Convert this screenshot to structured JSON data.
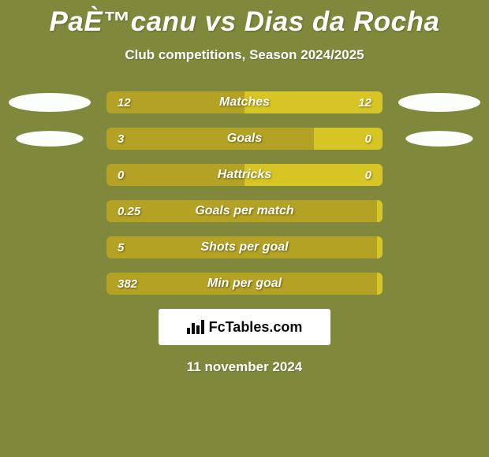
{
  "colors": {
    "background": "#80893b",
    "player1": "#b3a223",
    "player2": "#d6c525",
    "avatar": "#fcfefb",
    "text": "#ffffff",
    "brand_bg": "#ffffff",
    "brand_text": "#0a0a0a"
  },
  "title": "PaÈ™canu vs Dias da Rocha",
  "subtitle": "Club competitions, Season 2024/2025",
  "date": "11 november 2024",
  "brand": "FcTables.com",
  "stats": [
    {
      "label": "Matches",
      "left_val": "12",
      "right_val": "12",
      "left_pct": 50,
      "show_avatars": true,
      "avatar_scale_left": 1.0,
      "avatar_scale_right": 1.0
    },
    {
      "label": "Goals",
      "left_val": "3",
      "right_val": "0",
      "left_pct": 75,
      "show_avatars": true,
      "avatar_scale_left": 0.82,
      "avatar_scale_right": 0.82
    },
    {
      "label": "Hattricks",
      "left_val": "0",
      "right_val": "0",
      "left_pct": 50,
      "show_avatars": false
    },
    {
      "label": "Goals per match",
      "left_val": "0.25",
      "right_val": "",
      "left_pct": 98,
      "show_avatars": false
    },
    {
      "label": "Shots per goal",
      "left_val": "5",
      "right_val": "",
      "left_pct": 98,
      "show_avatars": false
    },
    {
      "label": "Min per goal",
      "left_val": "382",
      "right_val": "",
      "left_pct": 98,
      "show_avatars": false
    }
  ],
  "typography": {
    "title_size": 35,
    "subtitle_size": 17,
    "label_size": 16,
    "value_size": 15,
    "date_size": 17,
    "brand_size": 18
  }
}
